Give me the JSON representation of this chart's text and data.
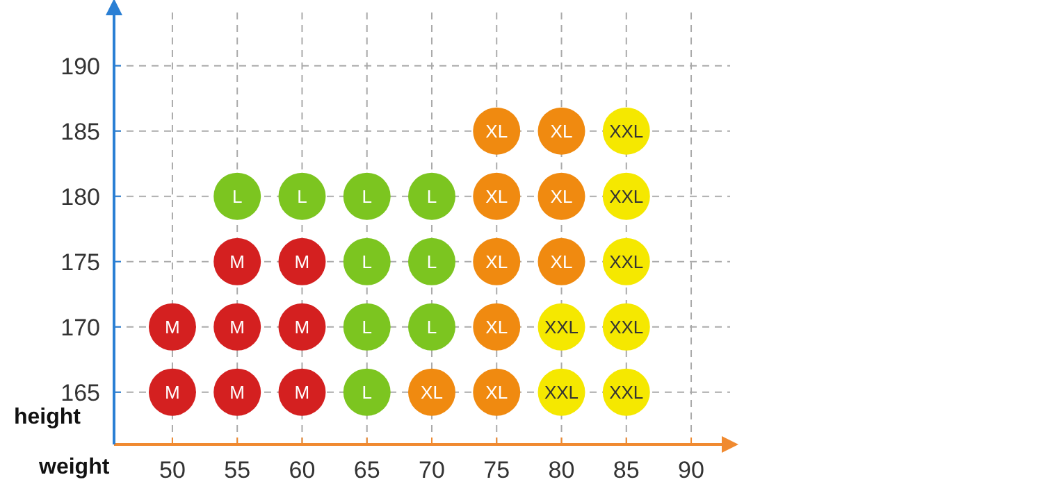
{
  "chart_data": {
    "type": "scatter",
    "xlabel": "weight",
    "ylabel": "height",
    "xlim": [
      45.5,
      93
    ],
    "ylim": [
      161,
      194.5
    ],
    "xticks": [
      50,
      55,
      60,
      65,
      70,
      75,
      80,
      85,
      90
    ],
    "yticks": [
      165,
      170,
      175,
      180,
      185,
      190
    ],
    "grid": true,
    "marker": "circle",
    "series": [
      {
        "name": "M",
        "color": "#d42020",
        "x": [
          50,
          55,
          60,
          50,
          55,
          60,
          55,
          60
        ],
        "values": [
          165,
          165,
          165,
          170,
          170,
          170,
          175,
          175
        ]
      },
      {
        "name": "L",
        "color": "#7cc520",
        "x": [
          65,
          65,
          70,
          65,
          70,
          55,
          60,
          65,
          70
        ],
        "values": [
          165,
          170,
          170,
          175,
          175,
          180,
          180,
          180,
          180
        ]
      },
      {
        "name": "XL",
        "color": "#f08a10",
        "x": [
          70,
          75,
          75,
          75,
          80,
          75,
          80,
          75,
          80
        ],
        "values": [
          165,
          165,
          170,
          175,
          175,
          180,
          180,
          185,
          185
        ]
      },
      {
        "name": "XXL",
        "color": "#f5e800",
        "x": [
          80,
          85,
          80,
          85,
          85,
          85,
          85
        ],
        "values": [
          165,
          165,
          170,
          170,
          175,
          180,
          185
        ]
      }
    ]
  }
}
